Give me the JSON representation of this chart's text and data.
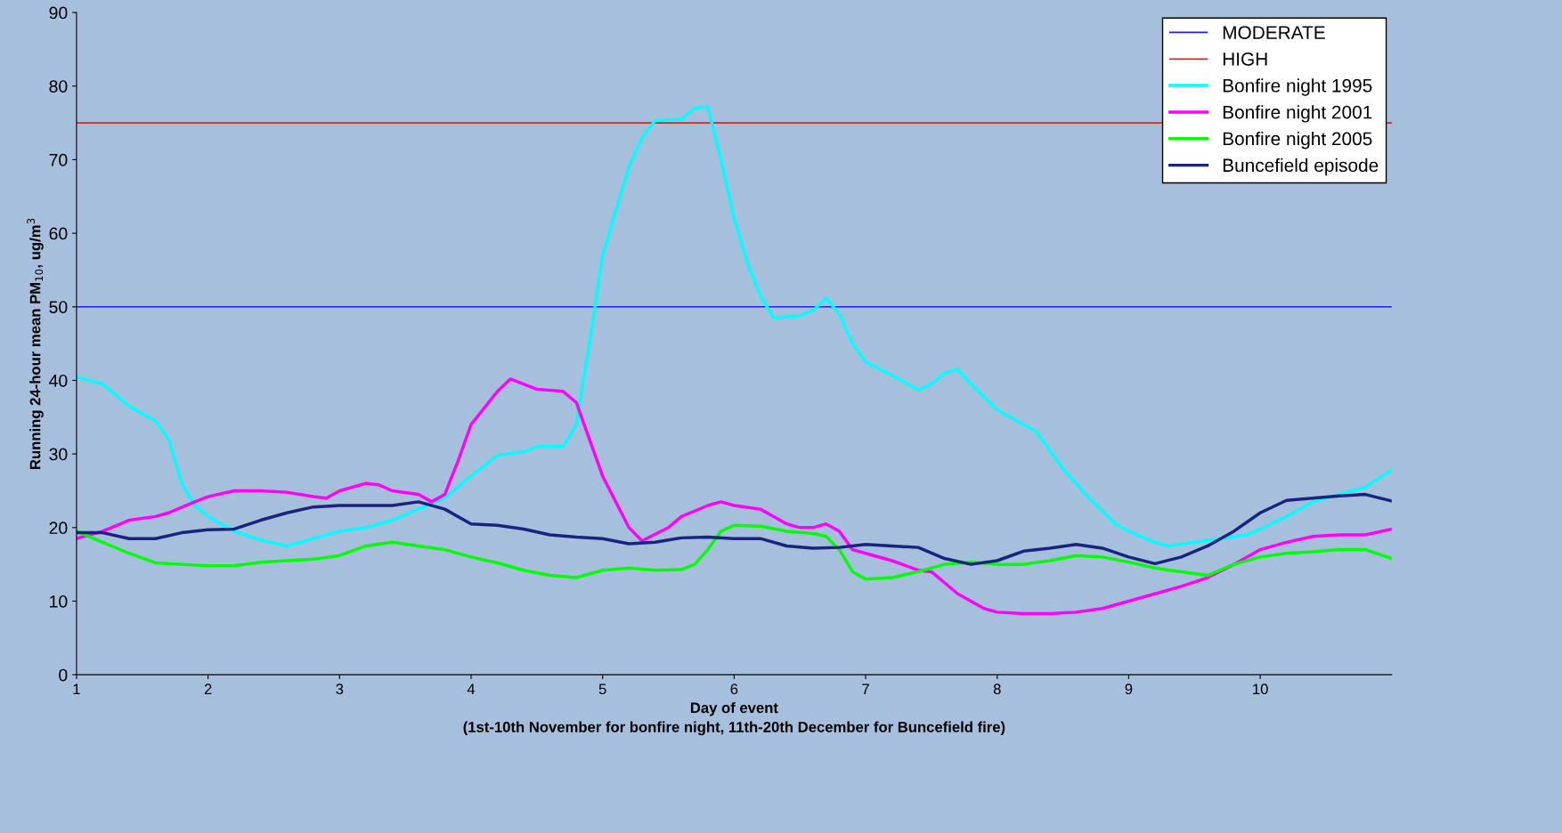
{
  "chart_data": {
    "type": "line",
    "xlabel": "Day of event\n(1st-10th November for bonfire night, 11th-20th December for Buncefield fire)",
    "ylabel": "Running 24-hour mean PM$_{10}$, ug/m$^{3}$",
    "xlim": [
      1,
      11
    ],
    "xticks": [
      1,
      2,
      3,
      4,
      5,
      6,
      7,
      8,
      9,
      10
    ],
    "ylim": [
      0,
      90
    ],
    "yticks": [
      0,
      10,
      20,
      30,
      40,
      50,
      60,
      70,
      80,
      90
    ],
    "grid": false,
    "legend": "top right",
    "marker": "none",
    "line_style": "solid",
    "ref_lines": [
      {
        "axis": "y",
        "value": 50,
        "label": "MODERATE",
        "color": "#2020e0"
      },
      {
        "axis": "y",
        "value": 75,
        "label": "HIGH",
        "color": "#e02020"
      }
    ],
    "series": [
      {
        "name": "Bonfire night 1995",
        "color": "#00ffff",
        "x": [
          1.0,
          1.2,
          1.4,
          1.6,
          1.7,
          1.8,
          1.9,
          2.0,
          2.2,
          2.4,
          2.6,
          2.8,
          3.0,
          3.2,
          3.4,
          3.6,
          3.8,
          4.0,
          4.2,
          4.4,
          4.5,
          4.7,
          4.8,
          4.9,
          5.0,
          5.1,
          5.2,
          5.3,
          5.4,
          5.6,
          5.7,
          5.8,
          5.9,
          6.0,
          6.1,
          6.2,
          6.3,
          6.5,
          6.6,
          6.7,
          6.8,
          6.9,
          7.0,
          7.2,
          7.4,
          7.5,
          7.6,
          7.7,
          7.8,
          8.0,
          8.2,
          8.3,
          8.5,
          8.7,
          8.9,
          9.0,
          9.2,
          9.3,
          9.5,
          9.7,
          9.9,
          10.0,
          10.2,
          10.4,
          10.6,
          10.8,
          11.0
        ],
        "values": [
          40.5,
          39.5,
          36.5,
          34.5,
          32,
          26,
          23,
          21.5,
          19.5,
          18.3,
          17.5,
          18.5,
          19.5,
          20,
          21,
          22.5,
          24,
          27,
          29.8,
          30.3,
          31,
          31,
          34,
          45,
          57,
          63,
          69,
          73,
          75.3,
          75.5,
          77,
          77.2,
          70,
          62,
          56,
          51.5,
          48.5,
          48.8,
          49.5,
          51.2,
          49,
          45,
          42.5,
          40.7,
          38.7,
          39.5,
          41,
          41.5,
          39.5,
          36,
          34,
          33,
          28,
          24,
          20.5,
          19.5,
          18,
          17.5,
          18,
          18.5,
          19,
          19.8,
          21.5,
          23.5,
          24.5,
          25.5,
          27.8
        ]
      },
      {
        "name": "Bonfire night 2001",
        "color": "#ff00ff",
        "x": [
          1.0,
          1.2,
          1.4,
          1.6,
          1.7,
          1.9,
          2.0,
          2.2,
          2.4,
          2.6,
          2.8,
          2.9,
          3.0,
          3.2,
          3.3,
          3.4,
          3.6,
          3.7,
          3.8,
          3.9,
          4.0,
          4.2,
          4.3,
          4.5,
          4.7,
          4.8,
          4.9,
          5.0,
          5.1,
          5.2,
          5.3,
          5.5,
          5.6,
          5.8,
          5.9,
          6.0,
          6.2,
          6.4,
          6.5,
          6.6,
          6.7,
          6.8,
          6.9,
          7.0,
          7.2,
          7.4,
          7.5,
          7.7,
          7.9,
          8.0,
          8.2,
          8.4,
          8.6,
          8.8,
          9.0,
          9.2,
          9.4,
          9.6,
          9.8,
          10.0,
          10.2,
          10.4,
          10.6,
          10.8,
          11.0
        ],
        "values": [
          18.5,
          19.5,
          21,
          21.5,
          22,
          23.5,
          24.2,
          25,
          25,
          24.8,
          24.2,
          24,
          25,
          26,
          25.8,
          25,
          24.5,
          23.5,
          24.5,
          29,
          34,
          38.5,
          40.2,
          38.8,
          38.5,
          37,
          32,
          27,
          23.5,
          20,
          18.2,
          20,
          21.5,
          23,
          23.5,
          23,
          22.5,
          20.5,
          20,
          20,
          20.5,
          19.5,
          17,
          16.5,
          15.5,
          14.2,
          14,
          11,
          9,
          8.5,
          8.3,
          8.3,
          8.5,
          9,
          10,
          11,
          12,
          13.2,
          15,
          17,
          18,
          18.8,
          19,
          19,
          19.8
        ]
      },
      {
        "name": "Bonfire night 2005",
        "color": "#00ff00",
        "x": [
          1.0,
          1.2,
          1.4,
          1.6,
          1.8,
          2.0,
          2.2,
          2.4,
          2.6,
          2.8,
          3.0,
          3.2,
          3.4,
          3.6,
          3.8,
          4.0,
          4.2,
          4.4,
          4.6,
          4.8,
          5.0,
          5.2,
          5.4,
          5.6,
          5.7,
          5.8,
          5.9,
          6.0,
          6.2,
          6.4,
          6.6,
          6.7,
          6.8,
          6.9,
          7.0,
          7.2,
          7.4,
          7.6,
          7.8,
          8.0,
          8.2,
          8.4,
          8.6,
          8.8,
          9.0,
          9.2,
          9.4,
          9.6,
          9.8,
          10.0,
          10.2,
          10.4,
          10.6,
          10.8,
          11.0
        ],
        "values": [
          19.5,
          18,
          16.5,
          15.2,
          15,
          14.8,
          14.8,
          15.3,
          15.5,
          15.7,
          16.2,
          17.5,
          18,
          17.5,
          17,
          16,
          15.2,
          14.2,
          13.5,
          13.2,
          14.2,
          14.5,
          14.2,
          14.3,
          15,
          17,
          19.5,
          20.3,
          20.2,
          19.5,
          19.2,
          18.8,
          17,
          14,
          13,
          13.2,
          14,
          15,
          15.3,
          15,
          15,
          15.5,
          16.2,
          16,
          15.3,
          14.5,
          14,
          13.5,
          15,
          16,
          16.5,
          16.7,
          17,
          17,
          15.8
        ]
      },
      {
        "name": "Buncefield episode",
        "color": "#1a237e",
        "x": [
          1.0,
          1.2,
          1.4,
          1.6,
          1.8,
          2.0,
          2.2,
          2.4,
          2.6,
          2.8,
          3.0,
          3.2,
          3.4,
          3.6,
          3.8,
          4.0,
          4.2,
          4.4,
          4.6,
          4.8,
          5.0,
          5.2,
          5.4,
          5.6,
          5.8,
          6.0,
          6.2,
          6.4,
          6.6,
          6.8,
          7.0,
          7.2,
          7.4,
          7.6,
          7.8,
          8.0,
          8.2,
          8.4,
          8.6,
          8.8,
          9.0,
          9.2,
          9.4,
          9.6,
          9.8,
          10.0,
          10.2,
          10.4,
          10.6,
          10.8,
          11.0
        ],
        "values": [
          19.3,
          19.3,
          18.5,
          18.5,
          19.3,
          19.7,
          19.8,
          21,
          22,
          22.8,
          23,
          23,
          23,
          23.5,
          22.5,
          20.5,
          20.3,
          19.8,
          19,
          18.7,
          18.5,
          17.8,
          18,
          18.6,
          18.7,
          18.5,
          18.5,
          17.5,
          17.2,
          17.3,
          17.7,
          17.5,
          17.3,
          15.8,
          15,
          15.5,
          16.8,
          17.2,
          17.7,
          17.2,
          16,
          15.1,
          16,
          17.5,
          19.5,
          22,
          23.7,
          24,
          24.3,
          24.5,
          23.6
        ]
      }
    ]
  }
}
